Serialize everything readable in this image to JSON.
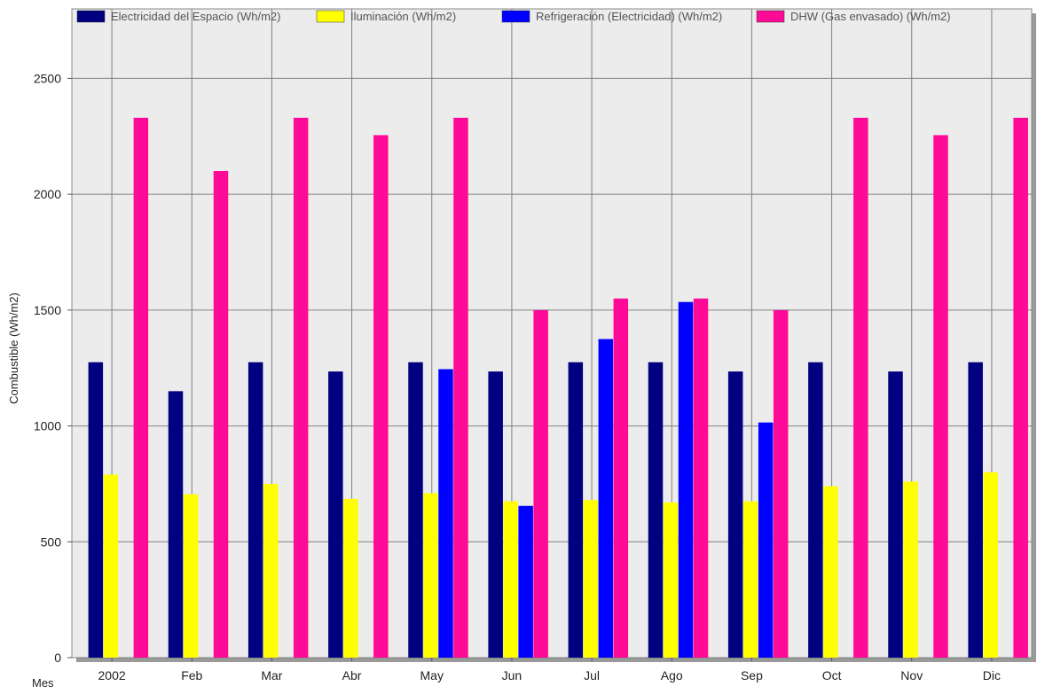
{
  "chart_data": {
    "type": "bar",
    "title": "",
    "xlabel": "Mes",
    "ylabel": "Combustible (Wh/m2)",
    "categories": [
      "2002",
      "Feb",
      "Mar",
      "Abr",
      "May",
      "Jun",
      "Jul",
      "Ago",
      "Sep",
      "Oct",
      "Nov",
      "Dic"
    ],
    "ylim": [
      0,
      2800
    ],
    "yticks": [
      0,
      500,
      1000,
      1500,
      2000,
      2500
    ],
    "grid": true,
    "legend_position": "top",
    "series": [
      {
        "name": "Electricidad del Espacio (Wh/m2)",
        "color": "#000080",
        "values": [
          1275,
          1150,
          1275,
          1235,
          1275,
          1235,
          1275,
          1275,
          1235,
          1275,
          1235,
          1275
        ]
      },
      {
        "name": "Iluminación (Wh/m2)",
        "color": "#ffff00",
        "values": [
          790,
          705,
          750,
          685,
          710,
          675,
          680,
          670,
          675,
          740,
          760,
          800
        ]
      },
      {
        "name": "Refrigeración (Electricidad) (Wh/m2)",
        "color": "#0000ff",
        "values": [
          0,
          0,
          0,
          0,
          1245,
          655,
          1375,
          1535,
          1015,
          0,
          0,
          0
        ]
      },
      {
        "name": "DHW (Gas envasado) (Wh/m2)",
        "color": "#ff0a96",
        "values": [
          2330,
          2100,
          2330,
          2255,
          2330,
          1500,
          1550,
          1550,
          1500,
          2330,
          2255,
          2330
        ]
      }
    ]
  },
  "colors": {
    "plot_background": "#ececec",
    "grid": "#808080"
  }
}
